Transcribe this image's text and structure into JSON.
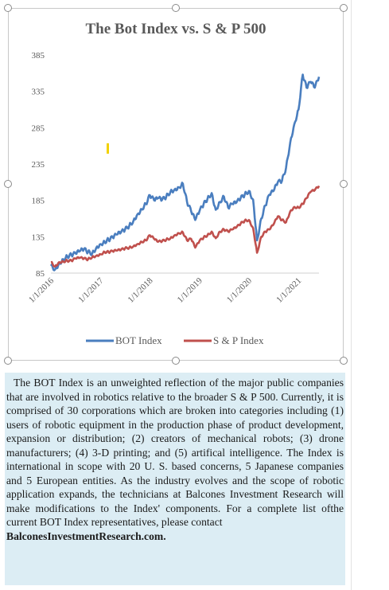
{
  "chart_data": {
    "type": "line",
    "title": "The Bot Index vs. S & P 500",
    "ylim": [
      85,
      385
    ],
    "y_ticks": [
      85,
      135,
      185,
      235,
      285,
      335,
      385
    ],
    "x_ticks": [
      "1/1/2016",
      "1/1/2017",
      "1/1/2018",
      "1/1/2019",
      "1/1/2020",
      "1/1/2021"
    ],
    "x_range": [
      "2016-01-01",
      "2021-06-01"
    ],
    "grid": false,
    "legend_position": "bottom",
    "series": [
      {
        "name": "BOT Index",
        "color": "#4a7ebf",
        "points": [
          [
            "2016-01-01",
            95
          ],
          [
            "2016-02-01",
            90
          ],
          [
            "2016-03-01",
            98
          ],
          [
            "2016-04-01",
            104
          ],
          [
            "2016-05-01",
            108
          ],
          [
            "2016-06-01",
            110
          ],
          [
            "2016-07-01",
            112
          ],
          [
            "2016-08-01",
            115
          ],
          [
            "2016-09-01",
            118
          ],
          [
            "2016-10-01",
            114
          ],
          [
            "2016-11-01",
            112
          ],
          [
            "2016-12-01",
            120
          ],
          [
            "2017-01-01",
            125
          ],
          [
            "2017-02-01",
            128
          ],
          [
            "2017-03-01",
            131
          ],
          [
            "2017-04-01",
            134
          ],
          [
            "2017-05-01",
            138
          ],
          [
            "2017-06-01",
            141
          ],
          [
            "2017-07-01",
            145
          ],
          [
            "2017-08-01",
            150
          ],
          [
            "2017-09-01",
            157
          ],
          [
            "2017-10-01",
            166
          ],
          [
            "2017-11-01",
            173
          ],
          [
            "2017-12-01",
            180
          ],
          [
            "2018-01-01",
            192
          ],
          [
            "2018-02-01",
            185
          ],
          [
            "2018-03-01",
            188
          ],
          [
            "2018-04-01",
            186
          ],
          [
            "2018-05-01",
            190
          ],
          [
            "2018-06-01",
            197
          ],
          [
            "2018-07-01",
            200
          ],
          [
            "2018-08-01",
            203
          ],
          [
            "2018-09-01",
            208
          ],
          [
            "2018-10-01",
            183
          ],
          [
            "2018-11-01",
            170
          ],
          [
            "2018-12-01",
            158
          ],
          [
            "2019-01-01",
            170
          ],
          [
            "2019-02-01",
            180
          ],
          [
            "2019-03-01",
            187
          ],
          [
            "2019-04-01",
            195
          ],
          [
            "2019-05-01",
            172
          ],
          [
            "2019-06-01",
            183
          ],
          [
            "2019-07-01",
            190
          ],
          [
            "2019-08-01",
            175
          ],
          [
            "2019-09-01",
            180
          ],
          [
            "2019-10-01",
            182
          ],
          [
            "2019-11-01",
            188
          ],
          [
            "2019-12-01",
            193
          ],
          [
            "2020-01-01",
            198
          ],
          [
            "2020-02-01",
            186
          ],
          [
            "2020-03-01",
            130
          ],
          [
            "2020-04-01",
            160
          ],
          [
            "2020-05-01",
            178
          ],
          [
            "2020-06-01",
            193
          ],
          [
            "2020-07-01",
            198
          ],
          [
            "2020-08-01",
            210
          ],
          [
            "2020-09-01",
            212
          ],
          [
            "2020-10-01",
            230
          ],
          [
            "2020-11-01",
            265
          ],
          [
            "2020-12-01",
            290
          ],
          [
            "2021-01-01",
            310
          ],
          [
            "2021-02-01",
            358
          ],
          [
            "2021-03-01",
            340
          ],
          [
            "2021-04-01",
            348
          ],
          [
            "2021-05-01",
            340
          ],
          [
            "2021-06-01",
            355
          ]
        ]
      },
      {
        "name": "S & P Index",
        "color": "#c0504d",
        "points": [
          [
            "2016-01-01",
            100
          ],
          [
            "2016-02-01",
            94
          ],
          [
            "2016-03-01",
            100
          ],
          [
            "2016-04-01",
            101
          ],
          [
            "2016-05-01",
            102
          ],
          [
            "2016-06-01",
            102
          ],
          [
            "2016-07-01",
            105
          ],
          [
            "2016-08-01",
            106
          ],
          [
            "2016-09-01",
            105
          ],
          [
            "2016-10-01",
            104
          ],
          [
            "2016-11-01",
            107
          ],
          [
            "2016-12-01",
            109
          ],
          [
            "2017-01-01",
            111
          ],
          [
            "2017-02-01",
            114
          ],
          [
            "2017-03-01",
            114
          ],
          [
            "2017-04-01",
            115
          ],
          [
            "2017-05-01",
            116
          ],
          [
            "2017-06-01",
            117
          ],
          [
            "2017-07-01",
            119
          ],
          [
            "2017-08-01",
            120
          ],
          [
            "2017-09-01",
            122
          ],
          [
            "2017-10-01",
            125
          ],
          [
            "2017-11-01",
            128
          ],
          [
            "2017-12-01",
            130
          ],
          [
            "2018-01-01",
            137
          ],
          [
            "2018-02-01",
            132
          ],
          [
            "2018-03-01",
            128
          ],
          [
            "2018-04-01",
            129
          ],
          [
            "2018-05-01",
            131
          ],
          [
            "2018-06-01",
            133
          ],
          [
            "2018-07-01",
            137
          ],
          [
            "2018-08-01",
            140
          ],
          [
            "2018-09-01",
            141
          ],
          [
            "2018-10-01",
            130
          ],
          [
            "2018-11-01",
            132
          ],
          [
            "2018-12-01",
            120
          ],
          [
            "2019-01-01",
            129
          ],
          [
            "2019-02-01",
            134
          ],
          [
            "2019-03-01",
            137
          ],
          [
            "2019-04-01",
            142
          ],
          [
            "2019-05-01",
            133
          ],
          [
            "2019-06-01",
            142
          ],
          [
            "2019-07-01",
            145
          ],
          [
            "2019-08-01",
            142
          ],
          [
            "2019-09-01",
            145
          ],
          [
            "2019-10-01",
            148
          ],
          [
            "2019-11-01",
            153
          ],
          [
            "2019-12-01",
            157
          ],
          [
            "2020-01-01",
            158
          ],
          [
            "2020-02-01",
            147
          ],
          [
            "2020-03-01",
            113
          ],
          [
            "2020-04-01",
            135
          ],
          [
            "2020-05-01",
            142
          ],
          [
            "2020-06-01",
            145
          ],
          [
            "2020-07-01",
            152
          ],
          [
            "2020-08-01",
            163
          ],
          [
            "2020-09-01",
            158
          ],
          [
            "2020-10-01",
            155
          ],
          [
            "2020-11-01",
            170
          ],
          [
            "2020-12-01",
            176
          ],
          [
            "2021-01-01",
            175
          ],
          [
            "2021-02-01",
            180
          ],
          [
            "2021-03-01",
            188
          ],
          [
            "2021-04-01",
            197
          ],
          [
            "2021-05-01",
            199
          ],
          [
            "2021-06-01",
            205
          ]
        ]
      }
    ]
  },
  "description": {
    "body": "The BOT Index is an unweighted reflection of the major public companies that are involved in robotics relative to the broader S & P 500. Currently, it is comprised of 30 corporations which are broken into categories including (1) users of robotic equipment in the production phase of product development, expansion or distribution; (2) creators of mechanical robots; (3) drone manufacturers; (4) 3-D printing; and (5) artifical intelligence. The Index is international in scope with 20 U. S. based concerns, 5 Japanese companies and 5 European entities. As the industry evolves and the scope of robotic application expands, the technicians at Balcones Investment Research will make modifications to the Index' components. For a complete list ofthe current BOT Index representatives, please contact",
    "contact": "BalconesInvestmentResearch.com."
  }
}
